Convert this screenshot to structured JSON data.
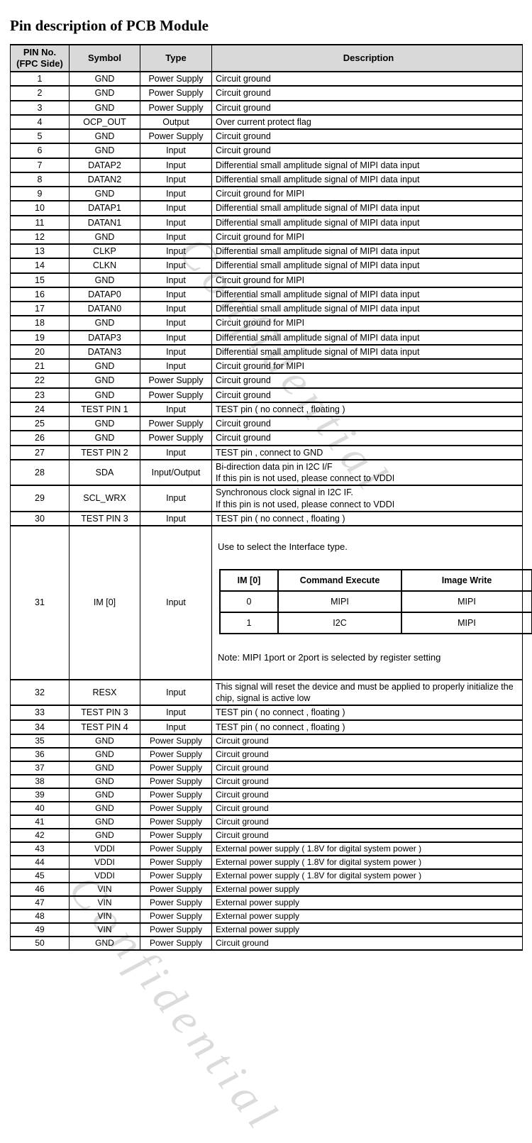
{
  "page_title": "Pin description of PCB Module",
  "watermark": {
    "text": "Confidential"
  },
  "table": {
    "headers": {
      "pin": "PIN No.\n(FPC Side)",
      "symbol": "Symbol",
      "type": "Type",
      "description": "Description"
    },
    "rows": [
      {
        "pin": "1",
        "symbol": "GND",
        "type": "Power Supply",
        "desc": "Circuit ground"
      },
      {
        "pin": "2",
        "symbol": "GND",
        "type": "Power Supply",
        "desc": "Circuit ground"
      },
      {
        "pin": "3",
        "symbol": "GND",
        "type": "Power Supply",
        "desc": "Circuit ground"
      },
      {
        "pin": "4",
        "symbol": "OCP_OUT",
        "type": "Output",
        "desc": "Over current protect flag"
      },
      {
        "pin": "5",
        "symbol": "GND",
        "type": "Power Supply",
        "desc": "Circuit ground"
      },
      {
        "pin": "6",
        "symbol": "GND",
        "type": "Input",
        "desc": "Circuit ground"
      },
      {
        "pin": "7",
        "symbol": "DATAP2",
        "type": "Input",
        "desc": "Differential small amplitude signal of MIPI data input"
      },
      {
        "pin": "8",
        "symbol": "DATAN2",
        "type": "Input",
        "desc": "Differential small amplitude signal of MIPI data input"
      },
      {
        "pin": "9",
        "symbol": "GND",
        "type": "Input",
        "desc": "Circuit ground for MIPI"
      },
      {
        "pin": "10",
        "symbol": "DATAP1",
        "type": "Input",
        "desc": "Differential small amplitude signal of MIPI data input"
      },
      {
        "pin": "11",
        "symbol": "DATAN1",
        "type": "Input",
        "desc": "Differential small amplitude signal of MIPI data input"
      },
      {
        "pin": "12",
        "symbol": "GND",
        "type": "Input",
        "desc": "Circuit ground for MIPI"
      },
      {
        "pin": "13",
        "symbol": "CLKP",
        "type": "Input",
        "desc": "Differential small amplitude signal of MIPI data input"
      },
      {
        "pin": "14",
        "symbol": "CLKN",
        "type": "Input",
        "desc": "Differential small amplitude signal of MIPI data input"
      },
      {
        "pin": "15",
        "symbol": "GND",
        "type": "Input",
        "desc": "Circuit ground for MIPI"
      },
      {
        "pin": "16",
        "symbol": "DATAP0",
        "type": "Input",
        "desc": "Differential small amplitude signal of MIPI data input"
      },
      {
        "pin": "17",
        "symbol": "DATAN0",
        "type": "Input",
        "desc": "Differential small amplitude signal of MIPI data input"
      },
      {
        "pin": "18",
        "symbol": "GND",
        "type": "Input",
        "desc": "Circuit ground for MIPI"
      },
      {
        "pin": "19",
        "symbol": "DATAP3",
        "type": "Input",
        "desc": "Differential small amplitude signal of MIPI data input"
      },
      {
        "pin": "20",
        "symbol": "DATAN3",
        "type": "Input",
        "desc": "Differential small amplitude signal of MIPI data input"
      },
      {
        "pin": "21",
        "symbol": "GND",
        "type": "Input",
        "desc": "Circuit ground for MIPI"
      },
      {
        "pin": "22",
        "symbol": "GND",
        "type": "Power Supply",
        "desc": "Circuit ground"
      },
      {
        "pin": "23",
        "symbol": "GND",
        "type": "Power Supply",
        "desc": "Circuit ground"
      },
      {
        "pin": "24",
        "symbol": "TEST PIN 1",
        "type": "Input",
        "desc": "TEST pin ( no connect , floating )"
      },
      {
        "pin": "25",
        "symbol": "GND",
        "type": "Power Supply",
        "desc": "Circuit ground"
      },
      {
        "pin": "26",
        "symbol": "GND",
        "type": "Power Supply",
        "desc": "Circuit ground"
      },
      {
        "pin": "27",
        "symbol": "TEST PIN 2",
        "type": "Input",
        "desc": "TEST pin , connect to GND"
      },
      {
        "pin": "28",
        "symbol": "SDA",
        "type": "Input/Output",
        "desc": "Bi-direction data pin in I2C I/F\nIf this pin is not used, please connect to VDDI"
      },
      {
        "pin": "29",
        "symbol": "SCL_WRX",
        "type": "Input",
        "desc": "Synchronous clock signal in I2C IF.\nIf this pin is not used, please connect to VDDI"
      },
      {
        "pin": "30",
        "symbol": "TEST PIN 3",
        "type": "Input",
        "desc": "TEST pin ( no connect , floating )"
      },
      {
        "pin": "31",
        "symbol": "IM [0]",
        "type": "Input",
        "desc_intro": "Use to select the Interface type.",
        "subtable": {
          "headers": [
            "IM [0]",
            "Command Execute",
            "Image Write"
          ],
          "rows": [
            [
              "0",
              "MIPI",
              "MIPI"
            ],
            [
              "1",
              "I2C",
              "MIPI"
            ]
          ]
        },
        "note": "Note: MIPI 1port or 2port is selected by register setting"
      },
      {
        "pin": "32",
        "symbol": "RESX",
        "type": "Input",
        "desc": "This signal will reset the device and must be applied to properly initialize the chip, signal is active low"
      },
      {
        "pin": "33",
        "symbol": "TEST PIN 3",
        "type": "Input",
        "desc": "TEST pin ( no connect , floating )"
      },
      {
        "pin": "34",
        "symbol": "TEST PIN 4",
        "type": "Input",
        "desc": "TEST pin ( no connect , floating )"
      },
      {
        "pin": "35",
        "symbol": "GND",
        "type": "Power Supply",
        "desc": "Circuit ground"
      },
      {
        "pin": "36",
        "symbol": "GND",
        "type": "Power Supply",
        "desc": "Circuit ground"
      },
      {
        "pin": "37",
        "symbol": "GND",
        "type": "Power Supply",
        "desc": "Circuit ground"
      },
      {
        "pin": "38",
        "symbol": "GND",
        "type": "Power Supply",
        "desc": "Circuit ground"
      },
      {
        "pin": "39",
        "symbol": "GND",
        "type": "Power Supply",
        "desc": "Circuit ground"
      },
      {
        "pin": "40",
        "symbol": "GND",
        "type": "Power Supply",
        "desc": "Circuit ground"
      },
      {
        "pin": "41",
        "symbol": "GND",
        "type": "Power Supply",
        "desc": "Circuit ground"
      },
      {
        "pin": "42",
        "symbol": "GND",
        "type": "Power Supply",
        "desc": "Circuit ground"
      },
      {
        "pin": "43",
        "symbol": "VDDI",
        "type": "Power Supply",
        "desc": "External power supply ( 1.8V for digital system power )"
      },
      {
        "pin": "44",
        "symbol": "VDDI",
        "type": "Power Supply",
        "desc": "External power supply ( 1.8V for digital system power )"
      },
      {
        "pin": "45",
        "symbol": "VDDI",
        "type": "Power Supply",
        "desc": "External power supply ( 1.8V for digital system power )"
      },
      {
        "pin": "46",
        "symbol": "VIN",
        "type": "Power Supply",
        "desc": "External power supply"
      },
      {
        "pin": "47",
        "symbol": "VIN",
        "type": "Power Supply",
        "desc": "External power supply"
      },
      {
        "pin": "48",
        "symbol": "VIN",
        "type": "Power Supply",
        "desc": "External power supply"
      },
      {
        "pin": "49",
        "symbol": "VIN",
        "type": "Power Supply",
        "desc": "External power supply"
      },
      {
        "pin": "50",
        "symbol": "GND",
        "type": "Power Supply",
        "desc": "Circuit ground"
      }
    ]
  },
  "colors": {
    "header_bg": "#d9d9d9",
    "border": "#000000",
    "text": "#000000"
  }
}
